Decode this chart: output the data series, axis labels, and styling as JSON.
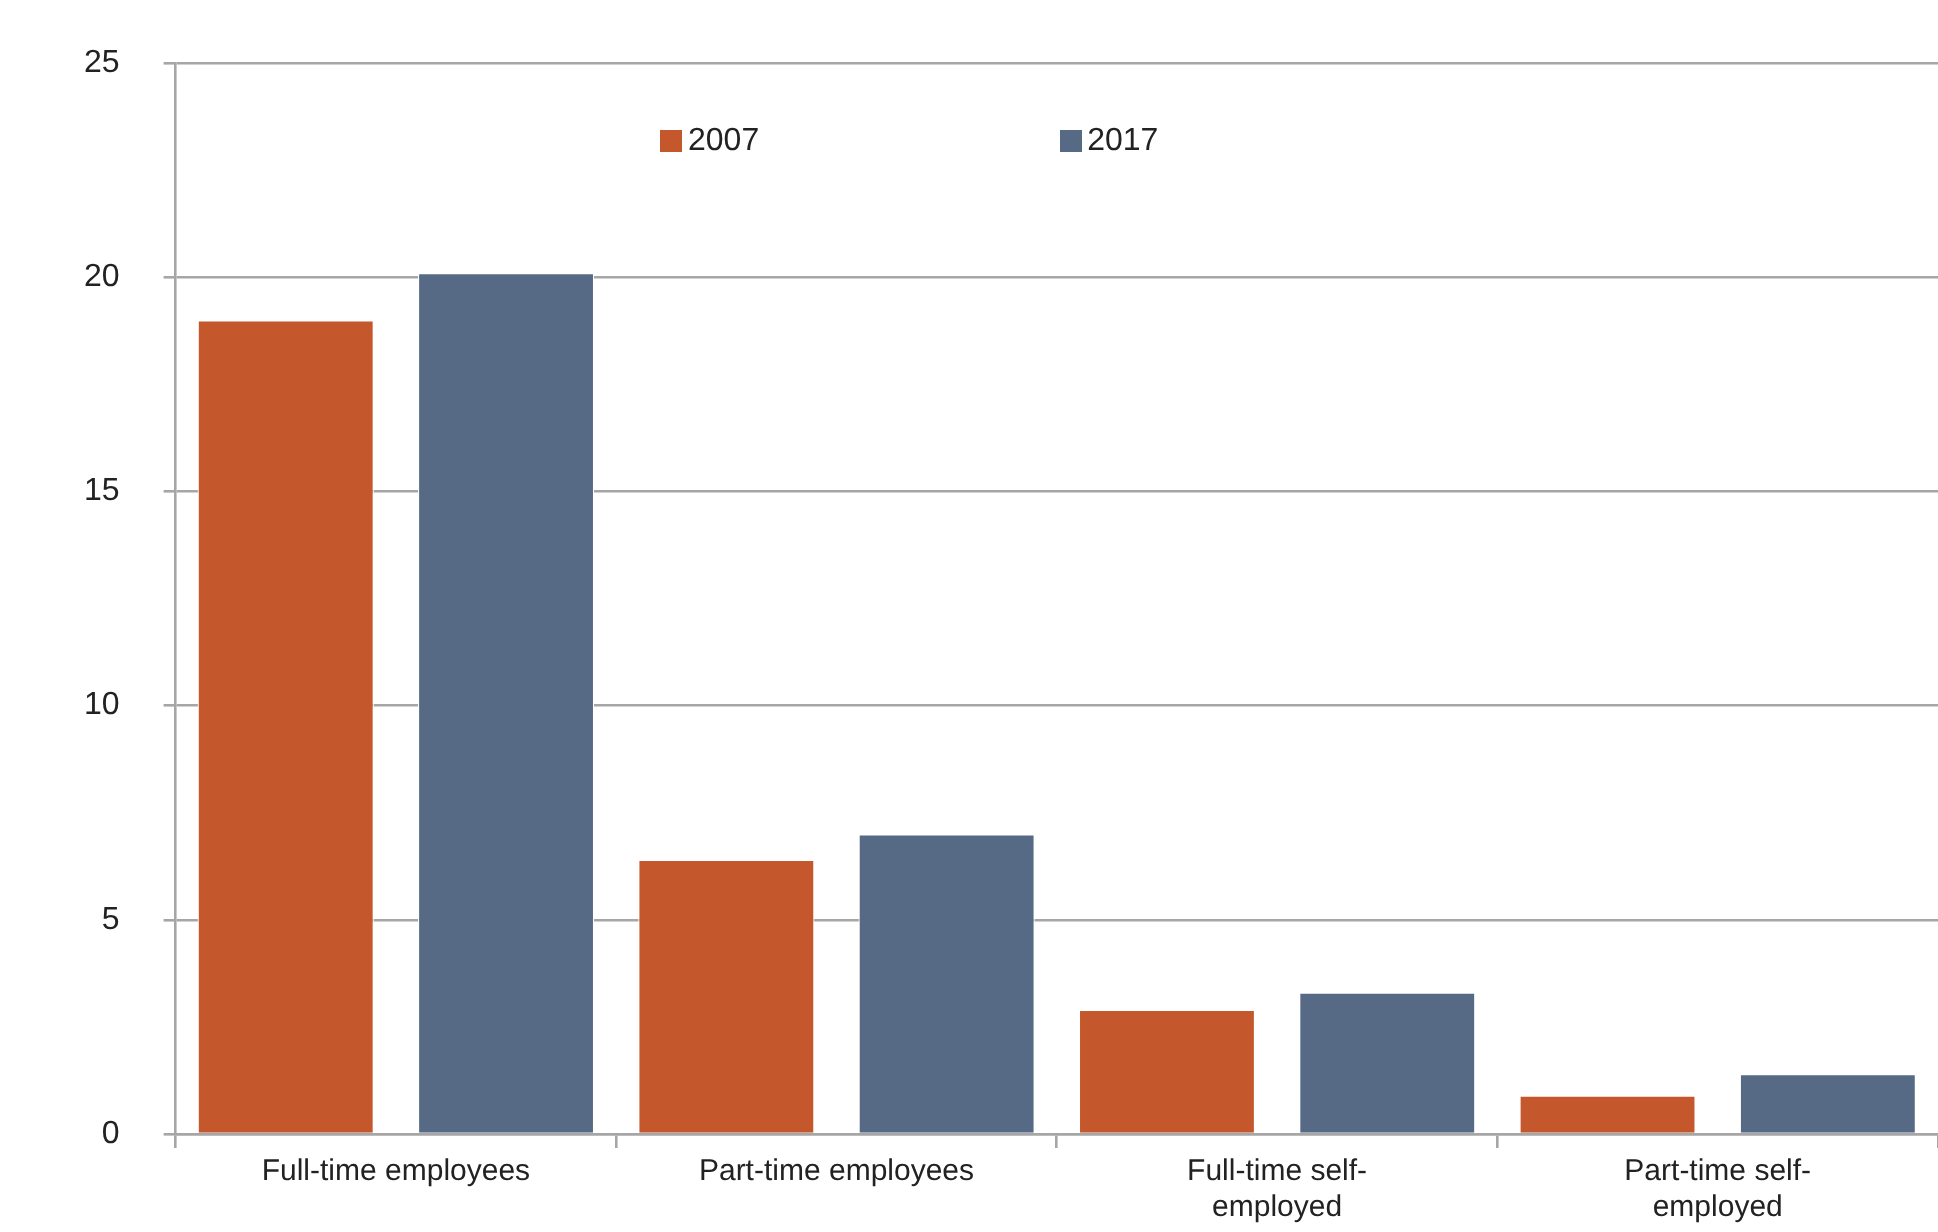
{
  "chart_data": {
    "type": "bar",
    "categories": [
      "Full-time employees",
      "Part-time employees",
      "Full-time self-employed",
      "Part-time self-employed"
    ],
    "series": [
      {
        "name": "2007",
        "color": "#c5572c",
        "values": [
          19.0,
          6.4,
          2.9,
          0.9
        ]
      },
      {
        "name": "2017",
        "color": "#566a86",
        "values": [
          20.1,
          7.0,
          3.3,
          1.4
        ]
      }
    ],
    "ylim": [
      0,
      25
    ],
    "yticks": [
      0,
      5,
      10,
      15,
      20,
      25
    ],
    "grid": "y",
    "legend": "top"
  }
}
